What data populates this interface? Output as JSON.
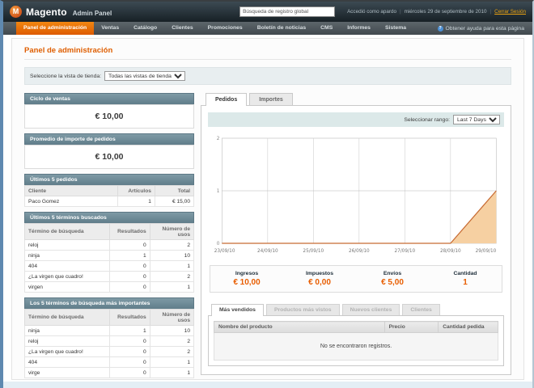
{
  "header": {
    "logo_title": "Magento",
    "logo_subtitle": "Admin Panel",
    "search_value": "Búsqueda de registro global",
    "logged_in": "Accedió como apardo",
    "date": "miércoles 29 de septiembre de 2010",
    "logout_label": "Cerrar Sesión"
  },
  "nav": {
    "items": [
      "Panel de administración",
      "Ventas",
      "Catálogo",
      "Clientes",
      "Promociones",
      "Boletín de noticias",
      "CMS",
      "Informes",
      "Sistema"
    ],
    "help_label": "Obtener ayuda para esta página"
  },
  "page": {
    "title": "Panel de administración",
    "store_view_label": "Seleccione la vista de tienda:",
    "store_view_value": "Todas las vistas de tienda"
  },
  "left": {
    "lifetime": {
      "title": "Ciclo de ventas",
      "value": "€ 10,00"
    },
    "average": {
      "title": "Promedio de importe de pedidos",
      "value": "€ 10,00"
    },
    "last_orders": {
      "title": "Últimos 5 pedidos",
      "columns": [
        "Cliente",
        "Artículos",
        "Total"
      ],
      "rows": [
        [
          "Paco Gomez",
          "1",
          "€ 15,00"
        ]
      ]
    },
    "last_search": {
      "title": "Últimos 5 términos buscados",
      "columns": [
        "Término de búsqueda",
        "Resultados",
        "Número de usos"
      ],
      "rows": [
        [
          "reloj",
          "0",
          "2"
        ],
        [
          "ninja",
          "1",
          "10"
        ],
        [
          "404",
          "0",
          "1"
        ],
        [
          "¿La virgen que cuadro!",
          "0",
          "2"
        ],
        [
          "virgen",
          "0",
          "1"
        ]
      ]
    },
    "top_search": {
      "title": "Los 5 términos de búsqueda más importantes",
      "columns": [
        "Término de búsqueda",
        "Resultados",
        "Número de usos"
      ],
      "rows": [
        [
          "ninja",
          "1",
          "10"
        ],
        [
          "reloj",
          "0",
          "2"
        ],
        [
          "¿La virgen que cuadro!",
          "0",
          "2"
        ],
        [
          "404",
          "0",
          "1"
        ],
        [
          "virge",
          "0",
          "1"
        ]
      ]
    }
  },
  "right": {
    "tabs": [
      "Pedidos",
      "Importes"
    ],
    "range_label": "Seleccionar rango:",
    "range_value": "Last 7 Days",
    "stats": [
      {
        "label": "Ingresos",
        "value": "€ 10,00"
      },
      {
        "label": "Impuestos",
        "value": "€ 0,00"
      },
      {
        "label": "Envíos",
        "value": "€ 5,00"
      },
      {
        "label": "Cantidad",
        "value": "1"
      }
    ],
    "bottom_tabs": [
      "Más vendidos",
      "Productos más vistos",
      "Nuevos clientes",
      "Clientes"
    ],
    "grid": {
      "columns": [
        "Nombre del producto",
        "Precio",
        "Cantidad pedida"
      ],
      "empty": "No se encontraron registros."
    }
  },
  "chart_data": {
    "type": "area",
    "title": "Pedidos - Last 7 Days",
    "x": [
      "23/09/10",
      "24/09/10",
      "25/09/10",
      "26/09/10",
      "27/09/10",
      "28/09/10",
      "29/09/10"
    ],
    "values": [
      0,
      0,
      0,
      0,
      0,
      0,
      1
    ],
    "ylim": [
      0,
      2
    ],
    "yticks": [
      0,
      1,
      2
    ],
    "grid": true,
    "line_color": "#c76b33",
    "fill_color": "#f6d0a2"
  }
}
